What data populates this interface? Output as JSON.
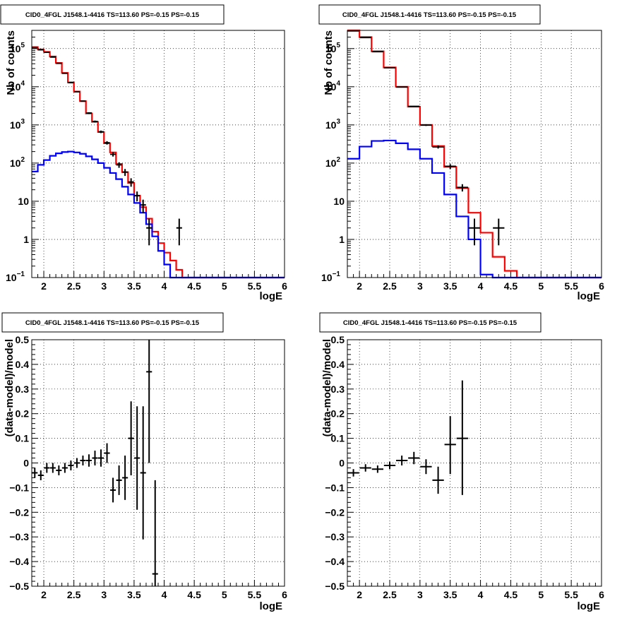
{
  "colors": {
    "total": "#ff0000",
    "component": "#0000ff",
    "data": "#000000"
  },
  "chart_data": [
    {
      "type": "line",
      "title": "CID0_4FGL J1548.1-4416 TS=113.60 PS=-0.15 PS=-0.15",
      "xlabel": "logE",
      "ylabel": "Nb of counts",
      "xlim": [
        1.8,
        6
      ],
      "ylim": [
        0.1,
        300000
      ],
      "log_y": true,
      "grid": true,
      "x_ticks": [
        "2",
        "2.5",
        "3",
        "3.5",
        "4",
        "4.5",
        "5",
        "5.5",
        "6"
      ],
      "y_ticks": [
        {
          "v": 0.1,
          "base": "10",
          "exp": "−1"
        },
        {
          "v": 1,
          "text": "1"
        },
        {
          "v": 10,
          "text": "10"
        },
        {
          "v": 100,
          "base": "10",
          "exp": "2"
        },
        {
          "v": 1000,
          "base": "10",
          "exp": "3"
        },
        {
          "v": 10000,
          "base": "10",
          "exp": "4"
        },
        {
          "v": 100000,
          "base": "10",
          "exp": "5"
        }
      ],
      "series": [
        {
          "role": "total",
          "bin_width": 0.1,
          "x": [
            1.85,
            1.95,
            2.05,
            2.15,
            2.25,
            2.35,
            2.45,
            2.55,
            2.65,
            2.75,
            2.85,
            2.95,
            3.05,
            3.15,
            3.25,
            3.35,
            3.45,
            3.55,
            3.65,
            3.75,
            3.85,
            3.95,
            4.05,
            4.15,
            4.25,
            4.35,
            4.45,
            4.55,
            4.65,
            4.75,
            4.85,
            4.95,
            5.05,
            5.15,
            5.25,
            5.35,
            5.45,
            5.55,
            5.65,
            5.75,
            5.85,
            5.95
          ],
          "y": [
            110000,
            95000,
            82000,
            62000,
            42000,
            23000,
            13000,
            7500,
            4200,
            2000,
            1200,
            650,
            330,
            190,
            95,
            58,
            30,
            14,
            7,
            3.5,
            1.6,
            0.8,
            0.45,
            0.28,
            0.16,
            0.09,
            0.05,
            0.03,
            0.02,
            0.01,
            0.01,
            0.01,
            0.01,
            0.01,
            0.01,
            0.01,
            0.01,
            0.01,
            0.01,
            0.01,
            0.01,
            0.01
          ]
        },
        {
          "role": "component",
          "bin_width": 0.1,
          "x": [
            1.85,
            1.95,
            2.05,
            2.15,
            2.25,
            2.35,
            2.45,
            2.55,
            2.65,
            2.75,
            2.85,
            2.95,
            3.05,
            3.15,
            3.25,
            3.35,
            3.45,
            3.55,
            3.65,
            3.75,
            3.85,
            3.95,
            4.05,
            4.15,
            4.25,
            4.35,
            4.45,
            4.55,
            4.65,
            4.75,
            4.85,
            4.95,
            5.05,
            5.15,
            5.25,
            5.35,
            5.45,
            5.55,
            5.65,
            5.75,
            5.85,
            5.95
          ],
          "y": [
            60,
            90,
            120,
            155,
            180,
            195,
            200,
            190,
            175,
            150,
            125,
            100,
            75,
            55,
            38,
            24,
            15,
            9,
            5,
            2.5,
            1.2,
            0.5,
            0.22,
            0.1,
            0.04,
            0.02,
            0.01,
            0.01,
            0.01,
            0.01,
            0.01,
            0.01,
            0.01,
            0.01,
            0.01,
            0.01,
            0.01,
            0.01,
            0.01,
            0.01,
            0.01,
            0.01
          ]
        }
      ],
      "points": [
        {
          "x": 1.85,
          "y": 105000,
          "ylo": 104000,
          "yhi": 106000
        },
        {
          "x": 1.95,
          "y": 93000,
          "ylo": 92000,
          "yhi": 94000
        },
        {
          "x": 2.05,
          "y": 80000,
          "ylo": 79000,
          "yhi": 81000
        },
        {
          "x": 2.15,
          "y": 60000,
          "ylo": 59000,
          "yhi": 61000
        },
        {
          "x": 2.25,
          "y": 41000,
          "ylo": 40000,
          "yhi": 42000
        },
        {
          "x": 2.35,
          "y": 22500,
          "ylo": 22000,
          "yhi": 23000
        },
        {
          "x": 2.45,
          "y": 12800,
          "ylo": 12500,
          "yhi": 13100
        },
        {
          "x": 2.55,
          "y": 7400,
          "ylo": 7200,
          "yhi": 7600
        },
        {
          "x": 2.65,
          "y": 4200,
          "ylo": 4050,
          "yhi": 4350
        },
        {
          "x": 2.75,
          "y": 2050,
          "ylo": 1950,
          "yhi": 2150
        },
        {
          "x": 2.85,
          "y": 1230,
          "ylo": 1160,
          "yhi": 1300
        },
        {
          "x": 2.95,
          "y": 660,
          "ylo": 610,
          "yhi": 710
        },
        {
          "x": 3.05,
          "y": 340,
          "ylo": 305,
          "yhi": 375
        },
        {
          "x": 3.15,
          "y": 170,
          "ylo": 148,
          "yhi": 192
        },
        {
          "x": 3.25,
          "y": 90,
          "ylo": 75,
          "yhi": 105
        },
        {
          "x": 3.35,
          "y": 58,
          "ylo": 46,
          "yhi": 70
        },
        {
          "x": 3.45,
          "y": 32,
          "ylo": 24,
          "yhi": 40
        },
        {
          "x": 3.55,
          "y": 14,
          "ylo": 10,
          "yhi": 18
        },
        {
          "x": 3.65,
          "y": 8,
          "ylo": 5,
          "yhi": 11
        },
        {
          "x": 3.75,
          "y": 2,
          "ylo": 0.7,
          "yhi": 3.5
        },
        {
          "x": 4.25,
          "y": 2,
          "ylo": 0.7,
          "yhi": 3.5
        }
      ]
    },
    {
      "type": "line",
      "title": "CID0_4FGL J1548.1-4416 TS=113.60 PS=-0.15 PS=-0.15",
      "xlabel": "logE",
      "ylabel": "Nb of counts",
      "xlim": [
        1.8,
        6
      ],
      "ylim": [
        0.1,
        300000
      ],
      "log_y": true,
      "grid": true,
      "x_ticks": [
        "2",
        "2.5",
        "3",
        "3.5",
        "4",
        "4.5",
        "5",
        "5.5",
        "6"
      ],
      "y_ticks": [
        {
          "v": 0.1,
          "base": "10",
          "exp": "−1"
        },
        {
          "v": 1,
          "text": "1"
        },
        {
          "v": 10,
          "text": "10"
        },
        {
          "v": 100,
          "base": "10",
          "exp": "2"
        },
        {
          "v": 1000,
          "base": "10",
          "exp": "3"
        },
        {
          "v": 10000,
          "base": "10",
          "exp": "4"
        },
        {
          "v": 100000,
          "base": "10",
          "exp": "5"
        }
      ],
      "series": [
        {
          "role": "total",
          "bin_width": 0.2,
          "x": [
            1.9,
            2.1,
            2.3,
            2.5,
            2.7,
            2.9,
            3.1,
            3.3,
            3.5,
            3.7,
            3.9,
            4.1,
            4.3,
            4.5,
            4.7,
            4.9,
            5.1,
            5.3,
            5.5,
            5.7,
            5.9
          ],
          "y": [
            300000,
            200000,
            85000,
            32000,
            10000,
            3000,
            1000,
            280,
            80,
            22,
            5,
            1.5,
            0.35,
            0.15,
            0.01,
            0.01,
            0.01,
            0.01,
            0.01,
            0.01,
            0.01
          ]
        },
        {
          "role": "component",
          "bin_width": 0.2,
          "x": [
            1.9,
            2.1,
            2.3,
            2.5,
            2.7,
            2.9,
            3.1,
            3.3,
            3.5,
            3.7,
            3.9,
            4.1,
            4.3,
            4.5,
            4.7,
            4.9,
            5.1,
            5.3,
            5.5,
            5.7,
            5.9
          ],
          "y": [
            130,
            270,
            380,
            390,
            330,
            230,
            130,
            55,
            15,
            4,
            1,
            0.12,
            0.01,
            0.01,
            0.01,
            0.01,
            0.01,
            0.01,
            0.01,
            0.01,
            0.01
          ]
        }
      ],
      "points": [
        {
          "x": 1.9,
          "y": 290000,
          "ylo": 288000,
          "yhi": 292000
        },
        {
          "x": 2.1,
          "y": 195000,
          "ylo": 193500,
          "yhi": 196500
        },
        {
          "x": 2.3,
          "y": 83000,
          "ylo": 82000,
          "yhi": 84000
        },
        {
          "x": 2.5,
          "y": 31500,
          "ylo": 31000,
          "yhi": 32000
        },
        {
          "x": 2.7,
          "y": 9800,
          "ylo": 9500,
          "yhi": 10100
        },
        {
          "x": 2.9,
          "y": 3050,
          "ylo": 2950,
          "yhi": 3150
        },
        {
          "x": 3.1,
          "y": 990,
          "ylo": 940,
          "yhi": 1040
        },
        {
          "x": 3.3,
          "y": 265,
          "ylo": 240,
          "yhi": 290
        },
        {
          "x": 3.5,
          "y": 82,
          "ylo": 70,
          "yhi": 94
        },
        {
          "x": 3.7,
          "y": 23,
          "ylo": 18,
          "yhi": 28
        },
        {
          "x": 3.9,
          "y": 2,
          "ylo": 0.7,
          "yhi": 3.5
        },
        {
          "x": 4.3,
          "y": 2,
          "ylo": 0.7,
          "yhi": 3.5
        }
      ]
    },
    {
      "type": "scatter",
      "title": "CID0_4FGL J1548.1-4416 TS=113.60 PS=-0.15 PS=-0.15",
      "xlabel": "logE",
      "ylabel": "(data-model)/model",
      "xlim": [
        1.8,
        6
      ],
      "ylim": [
        -0.5,
        0.5
      ],
      "grid": true,
      "x_ticks": [
        "2",
        "2.5",
        "3",
        "3.5",
        "4",
        "4.5",
        "5",
        "5.5",
        "6"
      ],
      "y_ticks": [
        "−0.5",
        "−0.4",
        "−0.3",
        "−0.2",
        "−0.1",
        "0",
        "0.1",
        "0.2",
        "0.3",
        "0.4",
        "0.5"
      ],
      "bin_width": 0.1,
      "points": [
        {
          "x": 1.85,
          "y": -0.04,
          "ylo": -0.06,
          "yhi": -0.02
        },
        {
          "x": 1.95,
          "y": -0.05,
          "ylo": -0.07,
          "yhi": -0.03
        },
        {
          "x": 2.05,
          "y": -0.02,
          "ylo": -0.04,
          "yhi": 0.0
        },
        {
          "x": 2.15,
          "y": -0.02,
          "ylo": -0.04,
          "yhi": 0.0
        },
        {
          "x": 2.25,
          "y": -0.03,
          "ylo": -0.05,
          "yhi": -0.01
        },
        {
          "x": 2.35,
          "y": -0.02,
          "ylo": -0.04,
          "yhi": 0.0
        },
        {
          "x": 2.45,
          "y": -0.01,
          "ylo": -0.03,
          "yhi": 0.01
        },
        {
          "x": 2.55,
          "y": 0.0,
          "ylo": -0.02,
          "yhi": 0.02
        },
        {
          "x": 2.65,
          "y": 0.01,
          "ylo": -0.01,
          "yhi": 0.03
        },
        {
          "x": 2.75,
          "y": 0.01,
          "ylo": -0.015,
          "yhi": 0.035
        },
        {
          "x": 2.85,
          "y": 0.02,
          "ylo": -0.01,
          "yhi": 0.05
        },
        {
          "x": 2.95,
          "y": 0.02,
          "ylo": -0.015,
          "yhi": 0.055
        },
        {
          "x": 3.05,
          "y": 0.04,
          "ylo": 0.0,
          "yhi": 0.08
        },
        {
          "x": 3.15,
          "y": -0.11,
          "ylo": -0.16,
          "yhi": -0.06
        },
        {
          "x": 3.25,
          "y": -0.07,
          "ylo": -0.13,
          "yhi": -0.01
        },
        {
          "x": 3.35,
          "y": -0.06,
          "ylo": -0.15,
          "yhi": 0.03
        },
        {
          "x": 3.45,
          "y": 0.1,
          "ylo": -0.05,
          "yhi": 0.25
        },
        {
          "x": 3.55,
          "y": 0.02,
          "ylo": -0.19,
          "yhi": 0.23
        },
        {
          "x": 3.65,
          "y": -0.04,
          "ylo": -0.31,
          "yhi": 0.23
        },
        {
          "x": 3.75,
          "y": 0.37,
          "ylo": 0.0,
          "yhi": 0.5
        },
        {
          "x": 3.85,
          "y": -0.45,
          "ylo": -0.5,
          "yhi": -0.07
        }
      ]
    },
    {
      "type": "scatter",
      "title": "CID0_4FGL J1548.1-4416 TS=113.60 PS=-0.15 PS=-0.15",
      "xlabel": "logE",
      "ylabel": "(data-model)/model",
      "xlim": [
        1.8,
        6
      ],
      "ylim": [
        -0.5,
        0.5
      ],
      "grid": true,
      "x_ticks": [
        "2",
        "2.5",
        "3",
        "3.5",
        "4",
        "4.5",
        "5",
        "5.5",
        "6"
      ],
      "y_ticks": [
        "−0.5",
        "−0.4",
        "−0.3",
        "−0.2",
        "−0.1",
        "0",
        "0.1",
        "0.2",
        "0.3",
        "0.4",
        "0.5"
      ],
      "bin_width": 0.2,
      "points": [
        {
          "x": 1.9,
          "y": -0.04,
          "ylo": -0.055,
          "yhi": -0.025
        },
        {
          "x": 2.1,
          "y": -0.02,
          "ylo": -0.035,
          "yhi": -0.005
        },
        {
          "x": 2.3,
          "y": -0.025,
          "ylo": -0.04,
          "yhi": -0.01
        },
        {
          "x": 2.5,
          "y": -0.01,
          "ylo": -0.025,
          "yhi": 0.005
        },
        {
          "x": 2.7,
          "y": 0.01,
          "ylo": -0.01,
          "yhi": 0.03
        },
        {
          "x": 2.9,
          "y": 0.02,
          "ylo": -0.005,
          "yhi": 0.045
        },
        {
          "x": 3.1,
          "y": -0.015,
          "ylo": -0.045,
          "yhi": 0.015
        },
        {
          "x": 3.3,
          "y": -0.07,
          "ylo": -0.125,
          "yhi": -0.015
        },
        {
          "x": 3.5,
          "y": 0.075,
          "ylo": -0.045,
          "yhi": 0.19
        },
        {
          "x": 3.7,
          "y": 0.1,
          "ylo": -0.13,
          "yhi": 0.335
        }
      ]
    }
  ]
}
